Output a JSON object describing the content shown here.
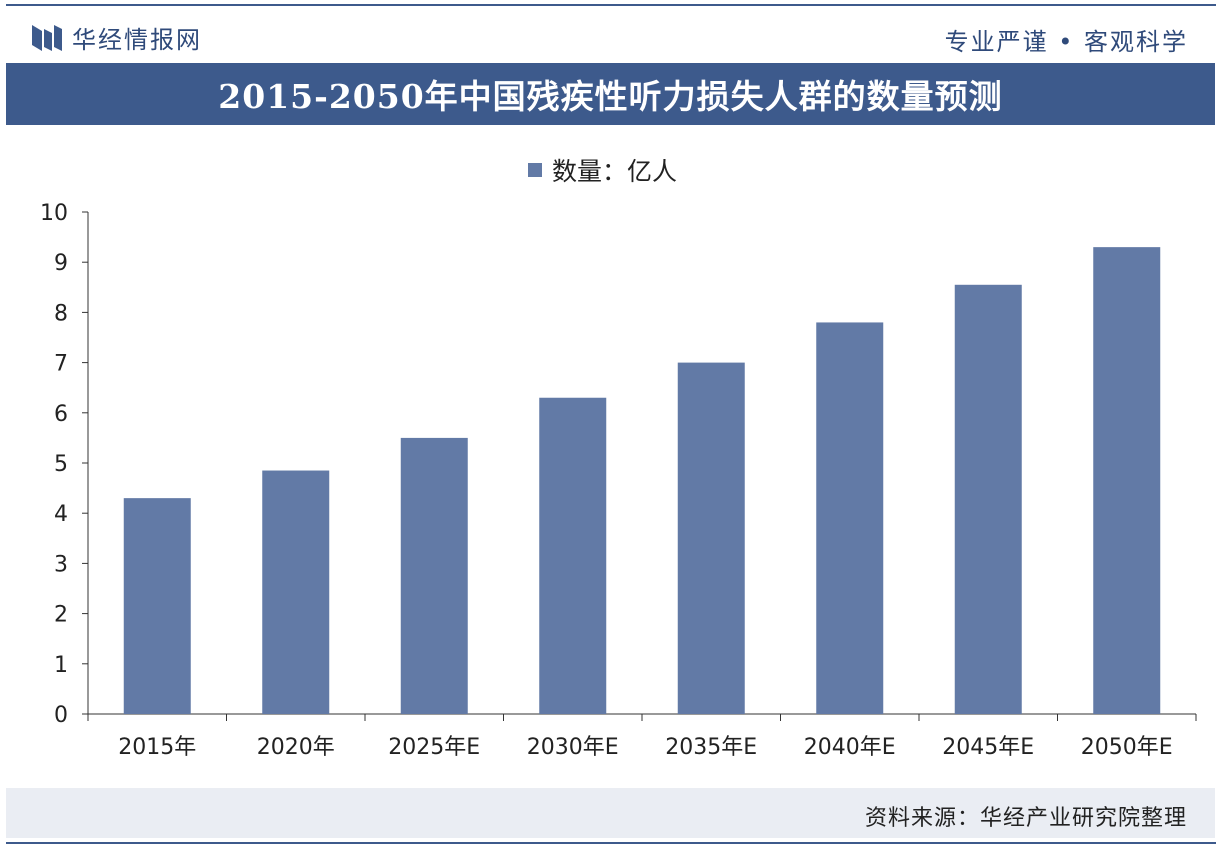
{
  "header": {
    "brand": "华经情报网",
    "slogan": "专业严谨 • 客观科学"
  },
  "title": "2015-2050年中国残疾性听力损失人群的数量预测",
  "legend_label": "数量：亿人",
  "source": "资料来源：华经产业研究院整理",
  "colors": {
    "brand": "#3d5a8c",
    "bar": "#627aa6"
  },
  "chart_data": {
    "type": "bar",
    "title": "2015-2050年中国残疾性听力损失人群的数量预测",
    "categories": [
      "2015年",
      "2020年",
      "2025年E",
      "2030年E",
      "2035年E",
      "2040年E",
      "2045年E",
      "2050年E"
    ],
    "series": [
      {
        "name": "数量：亿人",
        "values": [
          4.3,
          4.85,
          5.5,
          6.3,
          7.0,
          7.8,
          8.55,
          9.3
        ]
      }
    ],
    "ylim": [
      0,
      10
    ],
    "yticks": [
      0,
      1,
      2,
      3,
      4,
      5,
      6,
      7,
      8,
      9,
      10
    ],
    "xlabel": "",
    "ylabel": "",
    "grid": false,
    "legend": "top-center"
  }
}
